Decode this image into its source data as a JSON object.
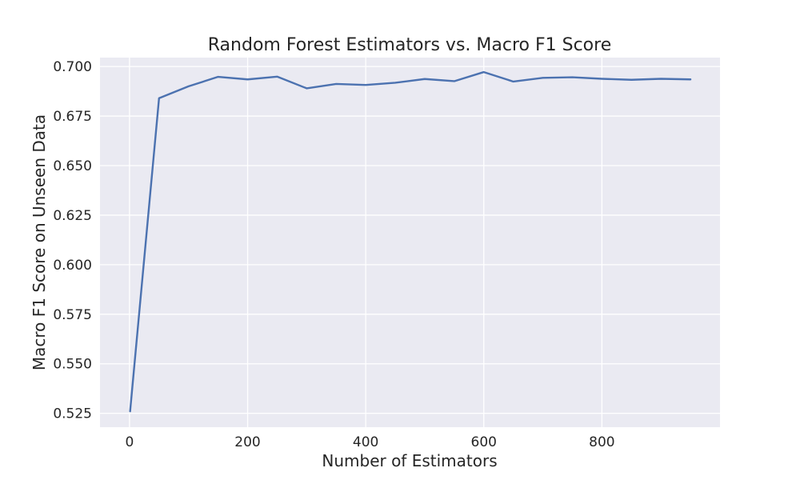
{
  "chart_data": {
    "type": "line",
    "title": "Random Forest Estimators vs. Macro F1 Score",
    "xlabel": "Number of Estimators",
    "ylabel": "Macro F1 Score on Unseen Data",
    "xlim": [
      -50,
      1000
    ],
    "ylim": [
      0.518,
      0.7045
    ],
    "xticks": [
      0,
      200,
      400,
      600,
      800
    ],
    "xtick_labels": [
      "0",
      "200",
      "400",
      "600",
      "800"
    ],
    "yticks": [
      0.525,
      0.55,
      0.575,
      0.6,
      0.625,
      0.65,
      0.675,
      0.7
    ],
    "ytick_labels": [
      "0.525",
      "0.550",
      "0.575",
      "0.600",
      "0.625",
      "0.650",
      "0.675",
      "0.700"
    ],
    "grid": true,
    "series": [
      {
        "color": "#4c72b0",
        "x": [
          1,
          50,
          100,
          150,
          200,
          250,
          300,
          350,
          400,
          450,
          500,
          550,
          600,
          650,
          700,
          750,
          800,
          850,
          900,
          950
        ],
        "y": [
          0.526,
          0.684,
          0.69,
          0.6948,
          0.6935,
          0.6949,
          0.689,
          0.6912,
          0.6907,
          0.6918,
          0.6937,
          0.6926,
          0.6972,
          0.6924,
          0.6943,
          0.6946,
          0.6938,
          0.6933,
          0.6938,
          0.6935
        ]
      }
    ]
  }
}
